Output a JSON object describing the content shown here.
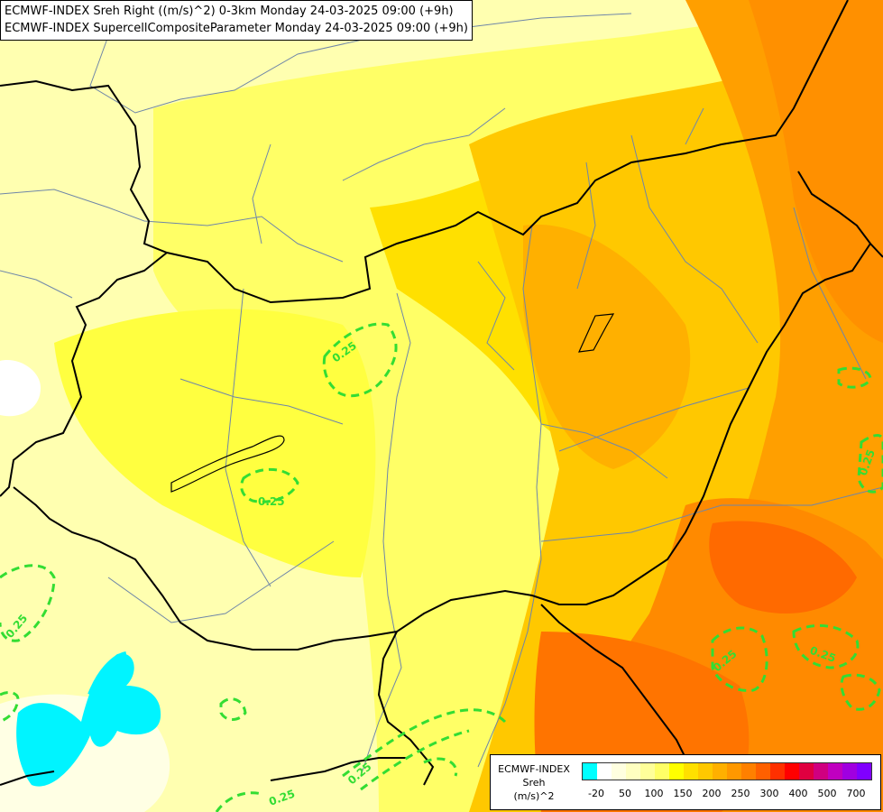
{
  "header": {
    "line1": "ECMWF-INDEX Sreh Right ((m/s)^2) 0-3km Monday 24-03-2025 09:00 (+9h)",
    "line2": "ECMWF-INDEX SupercellCompositeParameter Monday 24-03-2025 09:00 (+9h)"
  },
  "legend": {
    "line1": "ECMWF-INDEX",
    "line2": "Sreh",
    "line3": "(m/s)^2",
    "colors": [
      "#00ffff",
      "#ffffff",
      "#ffffe0",
      "#ffffc0",
      "#ffff9a",
      "#ffff66",
      "#ffff00",
      "#ffe000",
      "#ffc800",
      "#ffb000",
      "#ff9800",
      "#ff8000",
      "#ff6000",
      "#ff3000",
      "#ff0000",
      "#e00040",
      "#d00080",
      "#c000c0",
      "#a000e0",
      "#8000ff",
      "#6000c0",
      "#4000a0",
      "#200080"
    ],
    "ticks": [
      "-20",
      "50",
      "100",
      "150",
      "200",
      "250",
      "300",
      "400",
      "500",
      "700"
    ]
  },
  "contours": {
    "label": "0.25",
    "color": "#33dd33"
  }
}
